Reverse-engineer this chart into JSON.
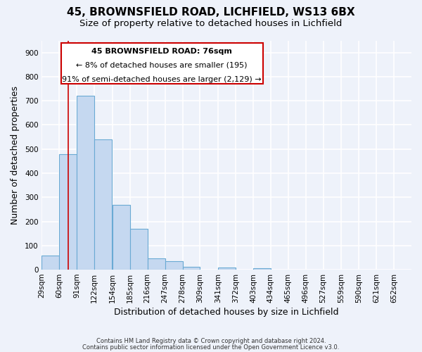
{
  "title": "45, BROWNSFIELD ROAD, LICHFIELD, WS13 6BX",
  "subtitle": "Size of property relative to detached houses in Lichfield",
  "xlabel": "Distribution of detached houses by size in Lichfield",
  "ylabel": "Number of detached properties",
  "footnote1": "Contains HM Land Registry data © Crown copyright and database right 2024.",
  "footnote2": "Contains public sector information licensed under the Open Government Licence v3.0.",
  "bar_left_edges": [
    29,
    60,
    91,
    122,
    154,
    185,
    216,
    247,
    278,
    309,
    341,
    372,
    403,
    434,
    465,
    496,
    527,
    559,
    590,
    621
  ],
  "bar_heights": [
    60,
    480,
    720,
    540,
    270,
    170,
    48,
    35,
    13,
    0,
    10,
    0,
    7,
    0,
    0,
    0,
    0,
    0,
    0,
    0
  ],
  "bin_width": 31,
  "bar_color": "#c5d8f0",
  "bar_edge_color": "#6aaad4",
  "x_tick_labels": [
    "29sqm",
    "60sqm",
    "91sqm",
    "122sqm",
    "154sqm",
    "185sqm",
    "216sqm",
    "247sqm",
    "278sqm",
    "309sqm",
    "341sqm",
    "372sqm",
    "403sqm",
    "434sqm",
    "465sqm",
    "496sqm",
    "527sqm",
    "559sqm",
    "590sqm",
    "621sqm",
    "652sqm"
  ],
  "ylim": [
    0,
    950
  ],
  "yticks": [
    0,
    100,
    200,
    300,
    400,
    500,
    600,
    700,
    800,
    900
  ],
  "xlim_left": 29,
  "xlim_right": 683,
  "property_line_x": 76,
  "property_line_color": "#cc0000",
  "annotation_title": "45 BROWNSFIELD ROAD: 76sqm",
  "annotation_line1": "← 8% of detached houses are smaller (195)",
  "annotation_line2": "91% of semi-detached houses are larger (2,129) →",
  "background_color": "#eef2fa",
  "grid_color": "#ffffff",
  "title_fontsize": 11,
  "subtitle_fontsize": 9.5,
  "xlabel_fontsize": 9,
  "ylabel_fontsize": 9,
  "tick_fontsize": 7.5,
  "annotation_fontsize": 8,
  "footnote_fontsize": 6
}
